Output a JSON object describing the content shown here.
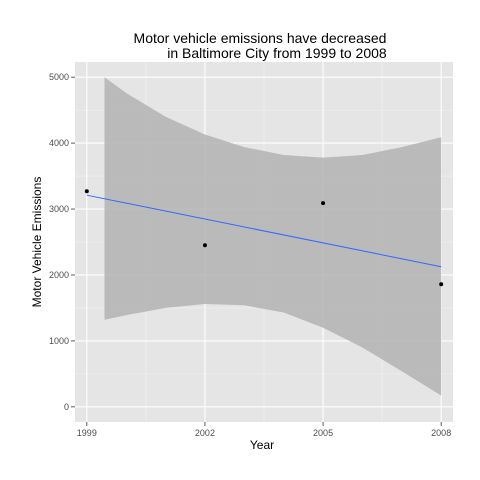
{
  "chart_data": {
    "type": "scatter",
    "title_lines": [
      "Motor vehicle emissions have decreased",
      "in Baltimore City from 1999 to 2008"
    ],
    "xlabel": "Year",
    "ylabel": "Motor Vehicle Emissions",
    "x_ticks": [
      1999,
      2002,
      2005,
      2008
    ],
    "x_tick_labels": [
      "1999",
      "2002",
      "2005",
      "2008"
    ],
    "y_ticks": [
      0,
      1000,
      2000,
      3000,
      4000,
      5000
    ],
    "y_tick_labels": [
      "0",
      "1000",
      "2000",
      "3000",
      "4000",
      "5000"
    ],
    "xlim": [
      1998.7,
      2008.3
    ],
    "ylim": [
      -230,
      5230
    ],
    "points": [
      {
        "x": 1999,
        "y": 3270
      },
      {
        "x": 2002,
        "y": 2450
      },
      {
        "x": 2005,
        "y": 3090
      },
      {
        "x": 2008,
        "y": 1860
      }
    ],
    "trend_line": {
      "x": [
        1999,
        2008
      ],
      "y": [
        3210,
        2125
      ]
    },
    "confidence_band": {
      "x": [
        1999.45,
        2000,
        2001,
        2002,
        2003,
        2004,
        2005,
        2006,
        2007,
        2008
      ],
      "upper": [
        5000,
        4760,
        4400,
        4130,
        3940,
        3820,
        3780,
        3820,
        3940,
        4090
      ],
      "lower": [
        1320,
        1390,
        1500,
        1560,
        1540,
        1430,
        1200,
        900,
        540,
        170
      ]
    },
    "grid": true,
    "colors": {
      "panel": "#e5e5e5",
      "grid_major": "#ffffff",
      "grid_minor": "#f2f2f2",
      "band": "#b3b3b3",
      "trend": "#3366ff",
      "point": "#000000"
    }
  }
}
